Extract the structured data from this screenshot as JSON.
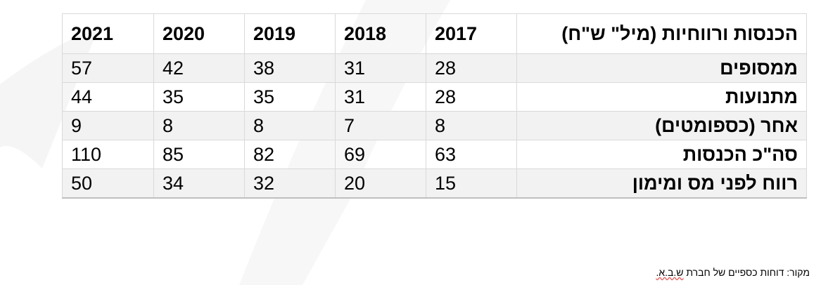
{
  "table": {
    "header_label": "הכנסות ורווחיות (מיל\" ש\"ח)",
    "years": [
      "2017",
      "2018",
      "2019",
      "2020",
      "2021"
    ],
    "rows": [
      {
        "label": "ממסופים",
        "values": [
          "28",
          "31",
          "38",
          "42",
          "57"
        ]
      },
      {
        "label": "מתנועות",
        "values": [
          "28",
          "31",
          "35",
          "35",
          "44"
        ]
      },
      {
        "label": "אחר (כספומטים)",
        "values": [
          "8",
          "7",
          "8",
          "8",
          "9"
        ]
      },
      {
        "label": "סה\"כ הכנסות",
        "values": [
          "63",
          "69",
          "82",
          "85",
          "110"
        ]
      },
      {
        "label": "רווח לפני מס ומימון",
        "values": [
          "15",
          "20",
          "32",
          "34",
          "50"
        ]
      }
    ]
  },
  "source": {
    "prefix": "מקור: דוחות כספיים של חברת",
    "company": "ש.ב.א."
  },
  "colors": {
    "row_shade": "#f2f2f2",
    "grid": "#d9d9d9",
    "background_swoosh": "#f7f7f7"
  }
}
